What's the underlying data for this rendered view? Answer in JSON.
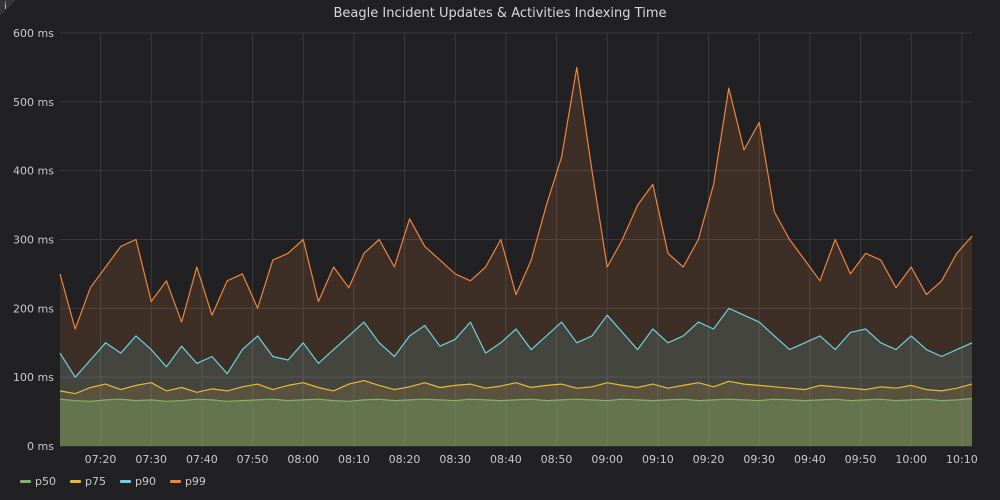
{
  "panel": {
    "info_icon_label": "i",
    "title": "Beagle Incident Updates & Activities Indexing Time"
  },
  "chart_data": {
    "type": "area",
    "title": "Beagle Incident Updates & Activities Indexing Time",
    "xlabel": "",
    "ylabel": "",
    "ylim": [
      0,
      600
    ],
    "yticks": [
      0,
      100,
      200,
      300,
      400,
      500,
      600
    ],
    "yunit": "ms",
    "ytick_labels": [
      "0 ms",
      "100 ms",
      "200 ms",
      "300 ms",
      "400 ms",
      "500 ms",
      "600 ms"
    ],
    "xlim": [
      "07:12",
      "10:12"
    ],
    "xtick_labels": [
      "07:20",
      "07:30",
      "07:40",
      "07:50",
      "08:00",
      "08:10",
      "08:20",
      "08:30",
      "08:40",
      "08:50",
      "09:00",
      "09:10",
      "09:20",
      "09:30",
      "09:40",
      "09:50",
      "10:00",
      "10:10"
    ],
    "grid": true,
    "legend_placement": "bottom-left",
    "x": [
      "07:12",
      "07:15",
      "07:18",
      "07:21",
      "07:24",
      "07:27",
      "07:30",
      "07:33",
      "07:36",
      "07:39",
      "07:42",
      "07:45",
      "07:48",
      "07:51",
      "07:54",
      "07:57",
      "08:00",
      "08:03",
      "08:06",
      "08:09",
      "08:12",
      "08:15",
      "08:18",
      "08:21",
      "08:24",
      "08:27",
      "08:30",
      "08:33",
      "08:36",
      "08:39",
      "08:42",
      "08:45",
      "08:48",
      "08:51",
      "08:54",
      "08:57",
      "09:00",
      "09:03",
      "09:06",
      "09:09",
      "09:12",
      "09:15",
      "09:18",
      "09:21",
      "09:24",
      "09:27",
      "09:30",
      "09:33",
      "09:36",
      "09:39",
      "09:42",
      "09:45",
      "09:48",
      "09:51",
      "09:54",
      "09:57",
      "10:00",
      "10:03",
      "10:06",
      "10:09",
      "10:12"
    ],
    "series": [
      {
        "name": "p50",
        "color": "#7eb26d",
        "values": [
          68,
          66,
          65,
          67,
          68,
          66,
          67,
          65,
          66,
          68,
          67,
          65,
          66,
          67,
          68,
          66,
          67,
          68,
          66,
          65,
          67,
          68,
          66,
          67,
          68,
          67,
          66,
          68,
          67,
          66,
          67,
          68,
          66,
          67,
          68,
          67,
          66,
          68,
          67,
          66,
          67,
          68,
          66,
          67,
          68,
          67,
          66,
          68,
          67,
          66,
          67,
          68,
          66,
          67,
          68,
          66,
          67,
          68,
          66,
          67,
          69
        ]
      },
      {
        "name": "p75",
        "color": "#eab839",
        "values": [
          80,
          76,
          85,
          90,
          82,
          88,
          92,
          80,
          85,
          78,
          83,
          80,
          86,
          90,
          82,
          88,
          92,
          85,
          80,
          90,
          95,
          88,
          82,
          86,
          92,
          85,
          88,
          90,
          84,
          87,
          92,
          85,
          88,
          90,
          84,
          86,
          92,
          88,
          85,
          90,
          84,
          88,
          92,
          86,
          94,
          90,
          88,
          86,
          84,
          82,
          88,
          86,
          84,
          82,
          86,
          84,
          88,
          82,
          80,
          84,
          90
        ]
      },
      {
        "name": "p90",
        "color": "#6ed0e0",
        "values": [
          135,
          100,
          125,
          150,
          135,
          160,
          140,
          115,
          145,
          120,
          130,
          105,
          140,
          160,
          130,
          125,
          150,
          120,
          140,
          160,
          180,
          150,
          130,
          160,
          175,
          145,
          155,
          180,
          135,
          150,
          170,
          140,
          160,
          180,
          150,
          160,
          190,
          165,
          140,
          170,
          150,
          160,
          180,
          170,
          200,
          190,
          180,
          160,
          140,
          150,
          160,
          140,
          165,
          170,
          150,
          140,
          160,
          140,
          130,
          140,
          150
        ]
      },
      {
        "name": "p99",
        "color": "#ef843c",
        "values": [
          250,
          170,
          230,
          260,
          290,
          300,
          210,
          240,
          180,
          260,
          190,
          240,
          250,
          200,
          270,
          280,
          300,
          210,
          260,
          230,
          280,
          300,
          260,
          330,
          290,
          270,
          250,
          240,
          260,
          300,
          220,
          270,
          350,
          420,
          550,
          400,
          260,
          300,
          350,
          380,
          280,
          260,
          300,
          380,
          520,
          430,
          470,
          340,
          300,
          270,
          240,
          300,
          250,
          280,
          270,
          230,
          260,
          220,
          240,
          280,
          305
        ]
      }
    ]
  }
}
